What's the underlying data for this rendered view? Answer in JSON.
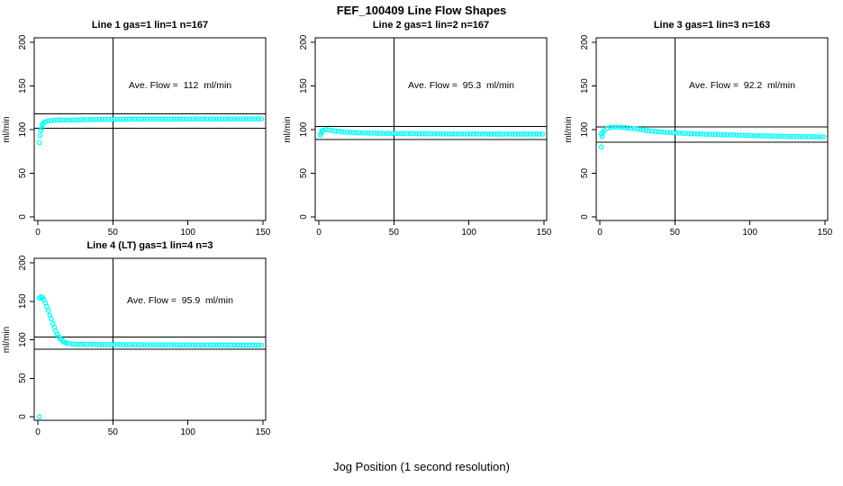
{
  "chart_data": {
    "type": "scatter",
    "title": "FEF_100409  Line Flow Shapes",
    "xlabel": "Jog Position (1 second resolution)",
    "ylabel": "ml/min",
    "x_ticks": [
      0,
      50,
      100,
      150
    ],
    "y_ticks": [
      0,
      50,
      100,
      150,
      200
    ],
    "xlim": [
      0,
      155
    ],
    "ylim": [
      0,
      205
    ],
    "grid": false,
    "legend": "none",
    "marker": "open-circle",
    "marker_color": "#00FFFF",
    "line_color": "#000000",
    "vline_x": 50,
    "panels": [
      {
        "title": "Line 1 gas=1 lin=1 n=167",
        "ave_flow": 112,
        "annotation": "Ave. Flow =  112  ml/min",
        "hline_upper": 118,
        "hline_lower": 101.5,
        "series": {
          "x_start": 1,
          "x_step": 2,
          "y": [
            85,
            105,
            109,
            110,
            110.5,
            111,
            111,
            111,
            111,
            111,
            111,
            111,
            111.2,
            111.2,
            111.3,
            111.3,
            111.4,
            111.4,
            111.5,
            111.5,
            111.6,
            111.6,
            111.7,
            111.7,
            111.7,
            111.8,
            111.8,
            111.8,
            111.9,
            111.9,
            112,
            112,
            112,
            112,
            112,
            112,
            112,
            112,
            112,
            112,
            112,
            112,
            112,
            112,
            112,
            112,
            112,
            112,
            112,
            112,
            112.2,
            112.2,
            112.2,
            112.2,
            112.2,
            112.2,
            112.2,
            112.2,
            112.2,
            112.2,
            112.2,
            112.2,
            112.2,
            112.2,
            112.3,
            112.3,
            112.3,
            112.3,
            112.3,
            112.3,
            112.3,
            112.3,
            112.3,
            112.3,
            112.3
          ]
        },
        "extra_points": [
          [
            1.5,
            93
          ],
          [
            2,
            99
          ],
          [
            2.5,
            102
          ],
          [
            3.5,
            107
          ],
          [
            4.5,
            108.5
          ]
        ]
      },
      {
        "title": "Line 2 gas=1 lin=2 n=167",
        "ave_flow": 95.3,
        "annotation": "Ave. Flow =  95.3  ml/min",
        "hline_upper": 103.5,
        "hline_lower": 88.5,
        "series": {
          "x_start": 1,
          "x_step": 2,
          "y": [
            93.5,
            99.5,
            100,
            99.5,
            99,
            98.5,
            98,
            97.5,
            97.2,
            97,
            96.8,
            96.6,
            96.5,
            96.3,
            96.2,
            96.1,
            96,
            96,
            95.9,
            95.9,
            95.8,
            95.8,
            95.7,
            95.7,
            95.7,
            95.6,
            95.6,
            95.6,
            95.5,
            95.5,
            95.5,
            95.4,
            95.4,
            95.4,
            95.3,
            95.3,
            95.3,
            95.3,
            95.2,
            95.2,
            95.2,
            95.2,
            95.1,
            95.1,
            95.1,
            95.1,
            95,
            95,
            95,
            95,
            95,
            94.9,
            94.9,
            94.9,
            94.9,
            94.9,
            94.8,
            94.8,
            94.8,
            94.8,
            94.8,
            94.8,
            94.8,
            94.8,
            94.8,
            94.8,
            94.8,
            94.8,
            94.8,
            94.8,
            94.8,
            94.8,
            94.8,
            94.8,
            94.8
          ]
        },
        "extra_points": [
          [
            1.5,
            96
          ],
          [
            2,
            98
          ],
          [
            2.5,
            99
          ]
        ]
      },
      {
        "title": "Line 3 gas=1 lin=3 n=163",
        "ave_flow": 92.2,
        "annotation": "Ave. Flow =  92.2  ml/min",
        "hline_upper": 103,
        "hline_lower": 85.5,
        "series": {
          "x_start": 1,
          "x_step": 2,
          "y": [
            95,
            99,
            101.5,
            102.5,
            103,
            103,
            102.8,
            102.5,
            102.2,
            102,
            101.5,
            101,
            100.5,
            100,
            99.5,
            99,
            98.6,
            98.2,
            97.9,
            97.6,
            97.3,
            97,
            96.8,
            96.6,
            96.4,
            96.2,
            96,
            95.8,
            95.7,
            95.5,
            95.4,
            95.2,
            95.1,
            95,
            94.8,
            94.7,
            94.6,
            94.5,
            94.4,
            94.3,
            94.2,
            94.1,
            94,
            93.9,
            93.8,
            93.7,
            93.6,
            93.5,
            93.4,
            93.3,
            93.2,
            93.1,
            93,
            92.9,
            92.8,
            92.8,
            92.7,
            92.6,
            92.5,
            92.5,
            92.4,
            92.3,
            92.3,
            92.2,
            92.2,
            92.1,
            92.1,
            92,
            92,
            91.9,
            91.9,
            91.8,
            91.8,
            91.7,
            91.7
          ]
        },
        "extra_points": [
          [
            1,
            80
          ],
          [
            1.5,
            92
          ],
          [
            2,
            97
          ]
        ]
      },
      {
        "title": "Line 4 (LT) gas=1 lin=4 n=3",
        "ave_flow": 95.9,
        "annotation": "Ave. Flow =  95.9  ml/min",
        "hline_upper": 103.5,
        "hline_lower": 88,
        "series": {
          "x_start": 1,
          "x_step": 2,
          "y": [
            154,
            155,
            148,
            138,
            127,
            116,
            107,
            101,
            97.5,
            95.8,
            95,
            94.6,
            94.4,
            94.2,
            94.1,
            94,
            94,
            93.9,
            93.9,
            93.9,
            93.8,
            93.8,
            93.8,
            93.8,
            93.7,
            93.7,
            93.7,
            93.7,
            93.6,
            93.6,
            93.6,
            93.6,
            93.6,
            93.5,
            93.5,
            93.5,
            93.5,
            93.5,
            93.5,
            93.4,
            93.4,
            93.4,
            93.4,
            93.4,
            93.4,
            93.3,
            93.3,
            93.3,
            93.3,
            93.3,
            93.3,
            93.2,
            93.2,
            93.2,
            93.2,
            93.2,
            93.2,
            93.2,
            93.1,
            93.1,
            93.1,
            93.1,
            93.1,
            93.1,
            93.1,
            93,
            93,
            93,
            93,
            93,
            93,
            93,
            93,
            93,
            93
          ]
        },
        "extra_points": [
          [
            1,
            0
          ],
          [
            2,
            156
          ],
          [
            4,
            152
          ],
          [
            6,
            143
          ],
          [
            8,
            132
          ],
          [
            10,
            121
          ],
          [
            12,
            111
          ],
          [
            14,
            104
          ],
          [
            16,
            99.5
          ],
          [
            18,
            96.5
          ]
        ]
      }
    ]
  }
}
